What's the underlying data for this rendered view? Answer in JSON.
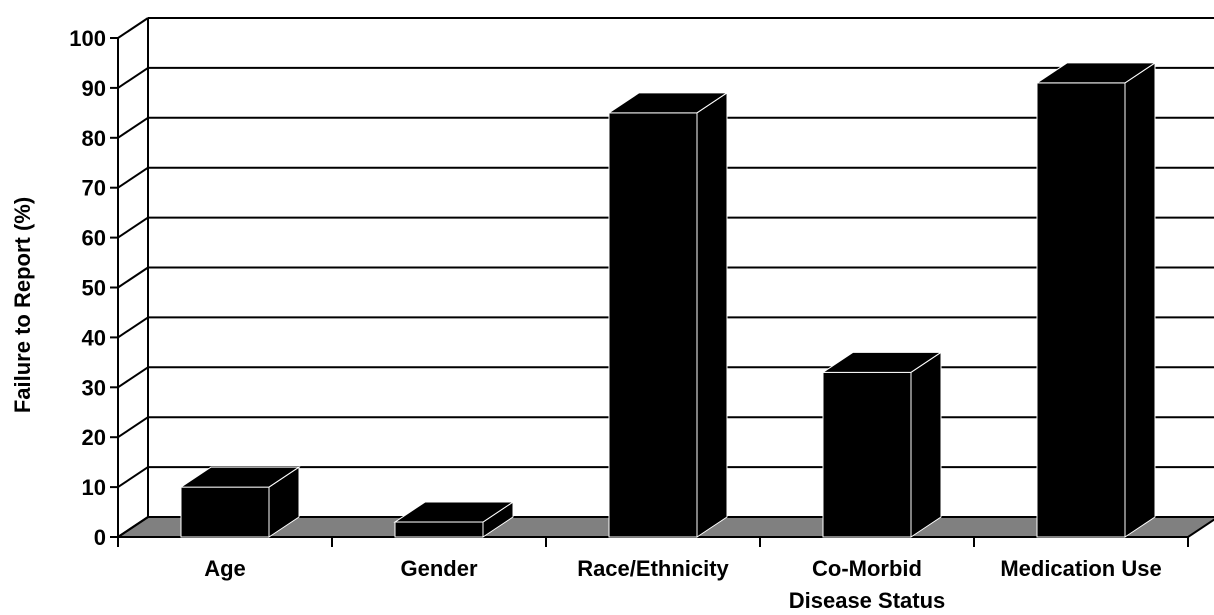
{
  "chart_data": {
    "type": "bar",
    "style": "3d",
    "categories": [
      [
        "Age"
      ],
      [
        "Gender"
      ],
      [
        "Race/Ethnicity"
      ],
      [
        "Co-Morbid",
        "Disease Status"
      ],
      [
        "Medication Use"
      ]
    ],
    "values": [
      10,
      3,
      85,
      33,
      91
    ],
    "ylabel": "Failure to Report (%)",
    "xlabel": "",
    "ylim": [
      0,
      100
    ],
    "yticks": [
      0,
      10,
      20,
      30,
      40,
      50,
      60,
      70,
      80,
      90,
      100
    ],
    "grid": true,
    "colors": {
      "bar": "#000000",
      "floor": "#808080",
      "background": "#ffffff",
      "gridline": "#000000"
    }
  }
}
